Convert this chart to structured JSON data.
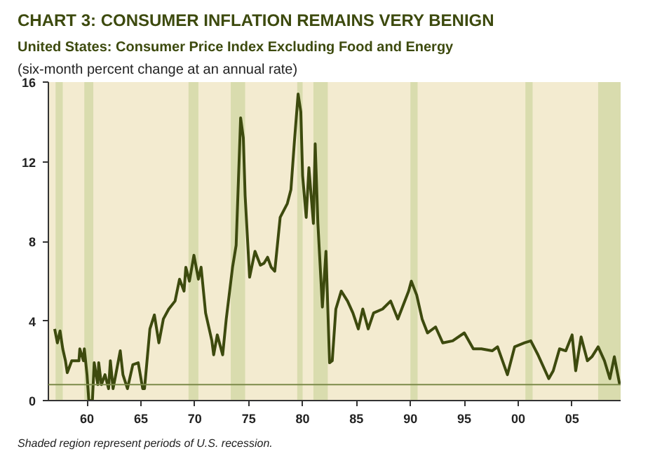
{
  "chart_data": {
    "type": "line",
    "title": "CHART 3: CONSUMER INFLATION REMAINS VERY BENIGN",
    "subtitle": "United States: Consumer Price Index Excluding Food and Energy",
    "ylabel": "(six-month percent change at an annual rate)",
    "annotations": [
      "Shaded region represent periods of U.S. recession."
    ],
    "x": [
      "1957-07",
      "1957-10",
      "1958-01",
      "1958-04",
      "1958-07",
      "1958-09",
      "1959-02",
      "1959-10",
      "1959-11",
      "1960-03",
      "1960-04",
      "1960-07",
      "1960-09",
      "1961-01",
      "1961-03",
      "1961-07",
      "1961-08",
      "1961-11",
      "1962-03",
      "1962-07",
      "1962-09",
      "1962-12",
      "1963-03",
      "1963-08",
      "1963-11",
      "1964-04",
      "1964-10",
      "1965-04",
      "1965-09",
      "1965-11",
      "1966-05",
      "1966-10",
      "1967-03",
      "1967-08",
      "1968-02",
      "1968-09",
      "1969-02",
      "1969-07",
      "1969-09",
      "1970-01",
      "1970-06",
      "1970-11",
      "1971-02",
      "1971-07",
      "1972-02",
      "1972-04",
      "1972-08",
      "1973-02",
      "1973-06",
      "1974-01",
      "1974-05",
      "1974-10",
      "1975-01",
      "1975-03",
      "1975-08",
      "1976-02",
      "1976-08",
      "1976-12",
      "1977-04",
      "1977-08",
      "1977-12",
      "1978-06",
      "1979-02",
      "1979-06",
      "1979-10",
      "1980-02",
      "1980-05",
      "1980-07",
      "1980-11",
      "1981-02",
      "1981-07",
      "1981-09",
      "1981-12",
      "1982-05",
      "1982-09",
      "1983-01",
      "1983-04",
      "1983-08",
      "1984-02",
      "1984-09",
      "1985-03",
      "1985-09",
      "1986-02",
      "1986-08",
      "1987-02",
      "1987-12",
      "1988-09",
      "1989-05",
      "1990-05",
      "1990-08",
      "1991-02",
      "1991-08",
      "1992-02",
      "1992-11",
      "1993-07",
      "1994-06",
      "1995-07",
      "1996-05",
      "1997-02",
      "1998-02",
      "1998-08",
      "1999-07",
      "2000-03",
      "2001-02",
      "2001-09",
      "2002-05",
      "2003-05",
      "2003-10",
      "2004-05",
      "2004-12",
      "2005-07",
      "2005-11",
      "2006-05",
      "2006-12",
      "2007-05",
      "2007-12",
      "2008-07",
      "2009-01",
      "2009-06",
      "2009-12"
    ],
    "series": [
      {
        "color": "#3d4a0e",
        "values": [
          3.6,
          2.9,
          3.5,
          2.6,
          2.0,
          1.4,
          2.0,
          2.0,
          2.6,
          2.0,
          2.6,
          1.3,
          0.0,
          0.0,
          1.9,
          0.8,
          1.9,
          0.8,
          1.3,
          0.6,
          2.0,
          0.6,
          1.3,
          2.5,
          1.3,
          0.6,
          1.8,
          1.9,
          0.6,
          0.6,
          3.6,
          4.3,
          2.9,
          4.1,
          4.6,
          5.0,
          6.1,
          5.5,
          6.7,
          6.0,
          7.3,
          6.1,
          6.7,
          4.4,
          3.0,
          2.3,
          3.3,
          2.3,
          4.1,
          6.7,
          7.8,
          14.2,
          13.2,
          10.3,
          6.2,
          7.5,
          6.8,
          6.9,
          7.2,
          6.7,
          6.5,
          9.2,
          9.9,
          10.6,
          13.1,
          15.4,
          14.5,
          11.3,
          9.2,
          11.7,
          8.9,
          12.9,
          8.9,
          4.7,
          7.5,
          1.9,
          2.0,
          4.6,
          5.5,
          5.0,
          4.4,
          3.6,
          4.6,
          3.6,
          4.4,
          4.6,
          5.0,
          4.1,
          5.5,
          6.0,
          5.3,
          4.1,
          3.4,
          3.7,
          2.9,
          3.0,
          3.4,
          2.6,
          2.6,
          2.5,
          2.7,
          1.3,
          2.7,
          2.9,
          3.0,
          2.3,
          1.1,
          1.5,
          2.6,
          2.5,
          3.3,
          1.5,
          3.2,
          2.0,
          2.2,
          2.7,
          2.0,
          1.1,
          2.2,
          0.8
        ]
      }
    ],
    "xlim": [
      "1956-12",
      "2010-01"
    ],
    "xticks": [
      {
        "value": "1960-07",
        "label": "60"
      },
      {
        "value": "1965-07",
        "label": "65"
      },
      {
        "value": "1970-07",
        "label": "70"
      },
      {
        "value": "1975-07",
        "label": "75"
      },
      {
        "value": "1980-07",
        "label": "80"
      },
      {
        "value": "1985-07",
        "label": "85"
      },
      {
        "value": "1990-07",
        "label": "90"
      },
      {
        "value": "1995-07",
        "label": "95"
      },
      {
        "value": "2000-07",
        "label": "00"
      },
      {
        "value": "2005-07",
        "label": "05"
      }
    ],
    "ylim": [
      0,
      16
    ],
    "yticks": [
      0,
      4,
      8,
      12,
      16
    ],
    "grid": false,
    "ref_lines": [
      {
        "axis": "y",
        "value": 0.8,
        "color": "#7c8a4a"
      }
    ],
    "bands": [
      {
        "axis": "x",
        "from": "1957-08",
        "to": "1958-04",
        "color": "#d9dcae"
      },
      {
        "axis": "x",
        "from": "1960-04",
        "to": "1961-02",
        "color": "#d9dcae"
      },
      {
        "axis": "x",
        "from": "1969-12",
        "to": "1970-11",
        "color": "#d9dcae"
      },
      {
        "axis": "x",
        "from": "1973-11",
        "to": "1975-03",
        "color": "#d9dcae"
      },
      {
        "axis": "x",
        "from": "1980-01",
        "to": "1980-07",
        "color": "#d9dcae"
      },
      {
        "axis": "x",
        "from": "1981-07",
        "to": "1982-11",
        "color": "#d9dcae"
      },
      {
        "axis": "x",
        "from": "1990-07",
        "to": "1991-03",
        "color": "#d9dcae"
      },
      {
        "axis": "x",
        "from": "2001-03",
        "to": "2001-11",
        "color": "#d9dcae"
      },
      {
        "axis": "x",
        "from": "2007-12",
        "to": "2010-01",
        "color": "#d9dcae"
      }
    ]
  }
}
